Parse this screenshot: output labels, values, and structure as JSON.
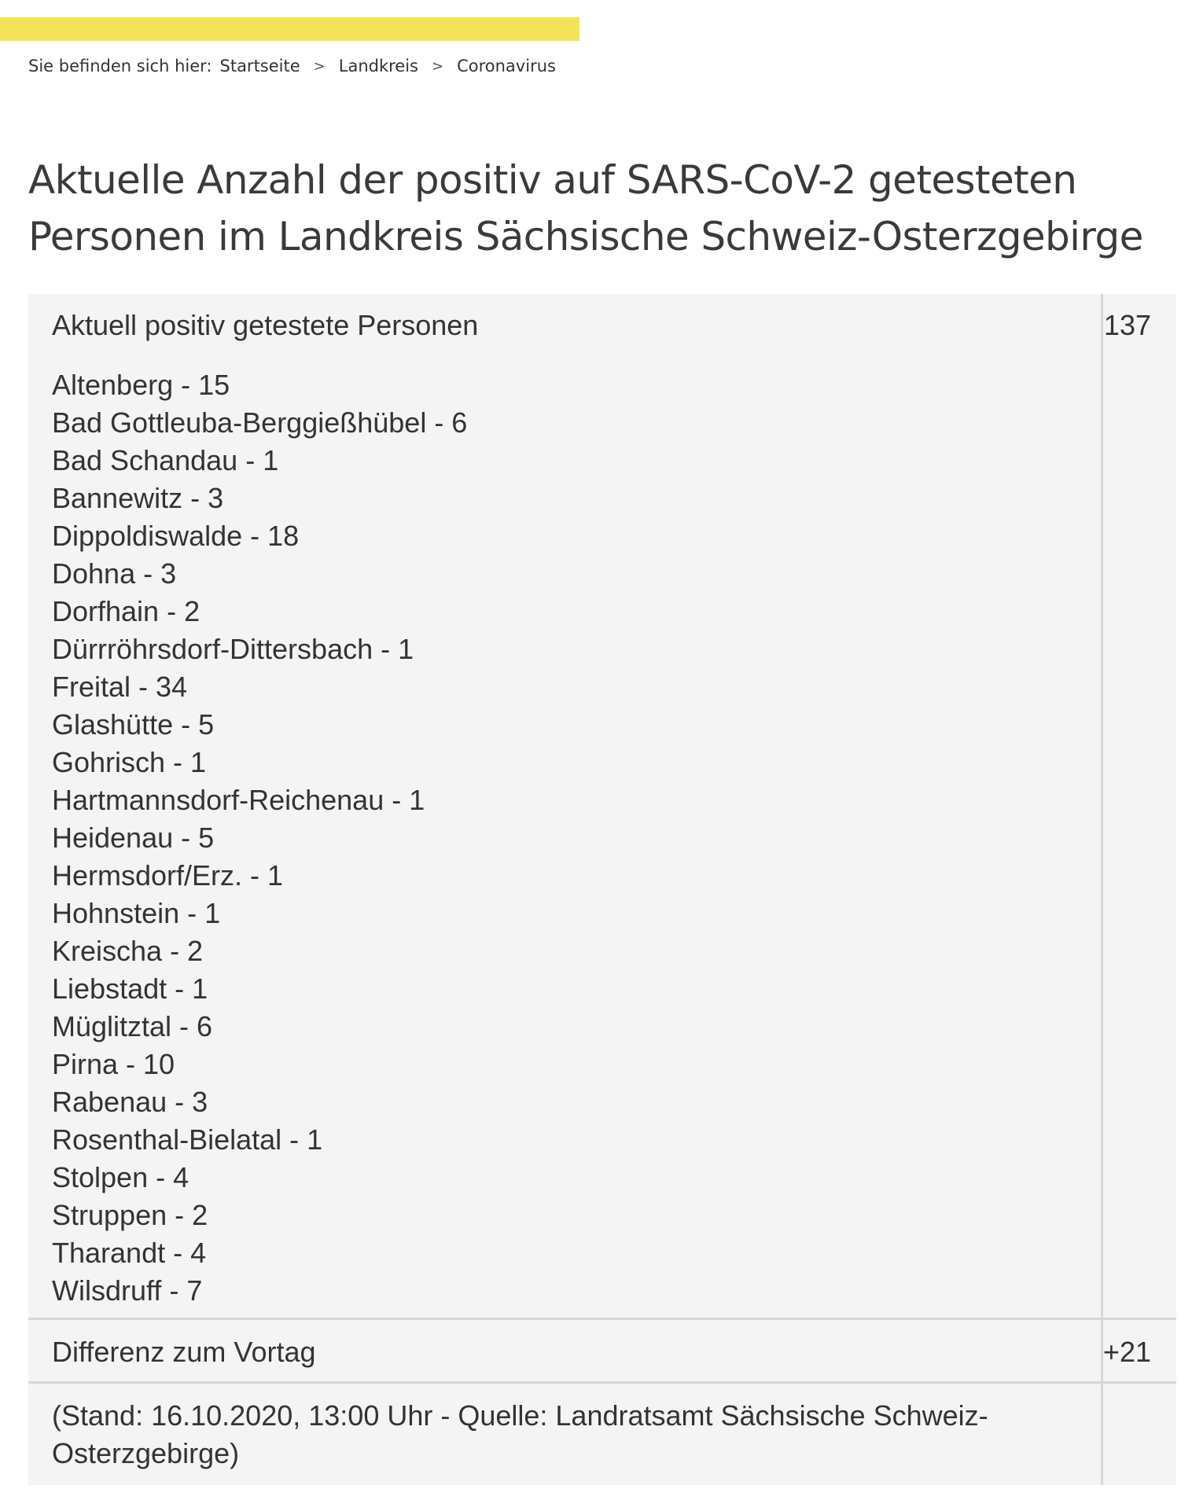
{
  "breadcrumb": {
    "prefix": "Sie befinden sich hier:",
    "items": [
      "Startseite",
      "Landkreis",
      "Coronavirus"
    ],
    "separator": ">"
  },
  "page_title": "Aktuelle Anzahl der positiv auf SARS-CoV-2 getesteten Personen im Landkreis Sächsische Schweiz-Osterzgebirge",
  "table": {
    "total_label": "Aktuell positiv getestete Personen",
    "total_value": "137",
    "towns": [
      "Altenberg - 15",
      "Bad Gottleuba-Berggießhübel - 6",
      "Bad Schandau - 1",
      "Bannewitz - 3",
      "Dippoldiswalde - 18",
      "Dohna - 3",
      "Dorfhain - 2",
      "Dürrröhrsdorf-Dittersbach - 1",
      "Freital - 34",
      "Glashütte - 5",
      "Gohrisch - 1",
      "Hartmannsdorf-Reichenau - 1",
      "Heidenau - 5",
      "Hermsdorf/Erz. - 1",
      "Hohnstein - 1",
      "Kreischa - 2",
      "Liebstadt - 1",
      "Müglitztal - 6",
      "Pirna - 10",
      "Rabenau - 3",
      "Rosenthal-Bielatal - 1",
      "Stolpen - 4",
      "Struppen - 2",
      "Tharandt - 4",
      "Wilsdruff - 7"
    ],
    "diff_label": "Differenz zum Vortag",
    "diff_value": "+21",
    "source_text": "(Stand: 16.10.2020, 13:00 Uhr - Quelle: Landratsamt Sächsische Schweiz-Osterzgebirge)"
  },
  "colors": {
    "accent_bar": "#f4e358",
    "table_background": "#f4f4f4",
    "divider": "#d6d6d6",
    "text": "#333333"
  }
}
